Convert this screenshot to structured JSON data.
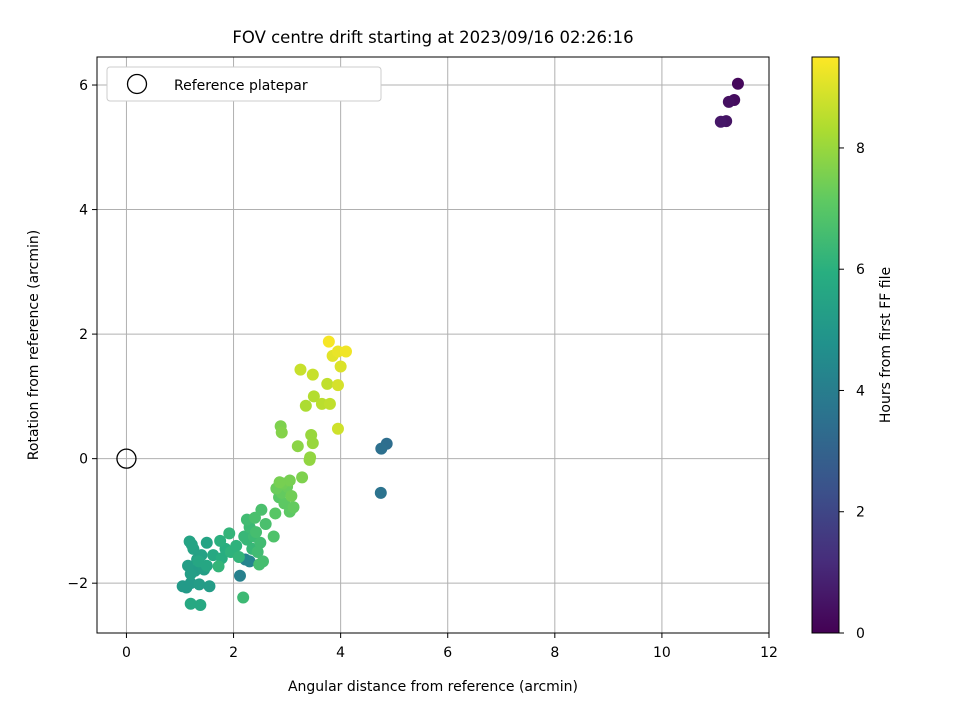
{
  "chart_data": {
    "type": "scatter",
    "title": "FOV centre drift starting at 2023/09/16 02:26:16",
    "xlabel": "Angular distance from reference (arcmin)",
    "ylabel": "Rotation from reference (arcmin)",
    "xlim": [
      -0.55,
      12
    ],
    "ylim": [
      -2.8,
      6.45
    ],
    "xticks": [
      0,
      2,
      4,
      6,
      8,
      10,
      12
    ],
    "yticks": [
      -2,
      0,
      2,
      4,
      6
    ],
    "grid": true,
    "legend": {
      "placement": "top-left",
      "entries": [
        "Reference platepar"
      ]
    },
    "reference_point": {
      "x": 0,
      "y": 0
    },
    "colorbar": {
      "label": "Hours from first FF file",
      "colormap": "viridis",
      "range": [
        0,
        9.5
      ],
      "ticks": [
        0,
        2,
        4,
        6,
        8
      ]
    },
    "series": [
      {
        "points": [
          {
            "x": 11.42,
            "y": 6.02,
            "c": 0.2
          },
          {
            "x": 11.35,
            "y": 5.76,
            "c": 0.3
          },
          {
            "x": 11.25,
            "y": 5.73,
            "c": 0.4
          },
          {
            "x": 11.2,
            "y": 5.42,
            "c": 0.5
          },
          {
            "x": 11.1,
            "y": 5.41,
            "c": 0.6
          },
          {
            "x": 4.86,
            "y": 0.24,
            "c": 3.4
          },
          {
            "x": 4.76,
            "y": 0.16,
            "c": 3.5
          },
          {
            "x": 4.75,
            "y": -0.55,
            "c": 3.6
          },
          {
            "x": 2.12,
            "y": -1.88,
            "c": 4.1
          },
          {
            "x": 2.22,
            "y": -1.62,
            "c": 4.2
          },
          {
            "x": 2.3,
            "y": -1.65,
            "c": 4.3
          },
          {
            "x": 1.12,
            "y": -2.07,
            "c": 5.1
          },
          {
            "x": 1.05,
            "y": -2.05,
            "c": 5.1
          },
          {
            "x": 1.2,
            "y": -2.0,
            "c": 5.1
          },
          {
            "x": 1.36,
            "y": -2.02,
            "c": 5.2
          },
          {
            "x": 1.55,
            "y": -2.05,
            "c": 5.2
          },
          {
            "x": 1.28,
            "y": -1.8,
            "c": 5.2
          },
          {
            "x": 1.45,
            "y": -1.78,
            "c": 5.3
          },
          {
            "x": 1.15,
            "y": -1.72,
            "c": 5.3
          },
          {
            "x": 1.2,
            "y": -1.85,
            "c": 5.3
          },
          {
            "x": 1.32,
            "y": -1.62,
            "c": 5.4
          },
          {
            "x": 1.4,
            "y": -1.55,
            "c": 5.4
          },
          {
            "x": 1.25,
            "y": -1.45,
            "c": 5.4
          },
          {
            "x": 1.18,
            "y": -1.33,
            "c": 5.5
          },
          {
            "x": 1.22,
            "y": -1.38,
            "c": 5.5
          },
          {
            "x": 1.5,
            "y": -1.35,
            "c": 5.5
          },
          {
            "x": 1.35,
            "y": -1.65,
            "c": 5.6
          },
          {
            "x": 1.5,
            "y": -1.72,
            "c": 5.6
          },
          {
            "x": 1.62,
            "y": -1.55,
            "c": 5.7
          },
          {
            "x": 1.2,
            "y": -2.33,
            "c": 5.7
          },
          {
            "x": 1.38,
            "y": -2.35,
            "c": 5.7
          },
          {
            "x": 1.78,
            "y": -1.6,
            "c": 5.9
          },
          {
            "x": 1.85,
            "y": -1.45,
            "c": 5.9
          },
          {
            "x": 1.75,
            "y": -1.32,
            "c": 6.0
          },
          {
            "x": 1.95,
            "y": -1.5,
            "c": 6.1
          },
          {
            "x": 2.05,
            "y": -1.4,
            "c": 6.1
          },
          {
            "x": 1.92,
            "y": -1.2,
            "c": 6.2
          },
          {
            "x": 1.72,
            "y": -1.73,
            "c": 6.2
          },
          {
            "x": 2.1,
            "y": -1.58,
            "c": 6.2
          },
          {
            "x": 2.25,
            "y": -1.3,
            "c": 6.3
          },
          {
            "x": 2.35,
            "y": -1.45,
            "c": 6.3
          },
          {
            "x": 2.2,
            "y": -1.25,
            "c": 6.3
          },
          {
            "x": 2.3,
            "y": -1.1,
            "c": 6.4
          },
          {
            "x": 2.18,
            "y": -2.23,
            "c": 6.4
          },
          {
            "x": 2.38,
            "y": -1.25,
            "c": 6.4
          },
          {
            "x": 2.45,
            "y": -1.5,
            "c": 6.5
          },
          {
            "x": 2.25,
            "y": -0.98,
            "c": 6.5
          },
          {
            "x": 2.5,
            "y": -1.35,
            "c": 6.5
          },
          {
            "x": 2.42,
            "y": -1.18,
            "c": 6.6
          },
          {
            "x": 2.55,
            "y": -1.65,
            "c": 6.6
          },
          {
            "x": 2.48,
            "y": -1.7,
            "c": 6.6
          },
          {
            "x": 2.4,
            "y": -0.95,
            "c": 6.7
          },
          {
            "x": 2.52,
            "y": -0.82,
            "c": 6.7
          },
          {
            "x": 2.6,
            "y": -1.05,
            "c": 6.7
          },
          {
            "x": 2.75,
            "y": -1.25,
            "c": 6.8
          },
          {
            "x": 2.78,
            "y": -0.88,
            "c": 7.0
          },
          {
            "x": 2.85,
            "y": -0.62,
            "c": 7.0
          },
          {
            "x": 2.95,
            "y": -0.72,
            "c": 7.1
          },
          {
            "x": 3.05,
            "y": -0.85,
            "c": 7.1
          },
          {
            "x": 3.12,
            "y": -0.78,
            "c": 7.2
          },
          {
            "x": 2.9,
            "y": -0.55,
            "c": 7.2
          },
          {
            "x": 3.0,
            "y": -0.45,
            "c": 7.3
          },
          {
            "x": 2.8,
            "y": -0.48,
            "c": 7.3
          },
          {
            "x": 3.08,
            "y": -0.6,
            "c": 7.4
          },
          {
            "x": 2.92,
            "y": -0.4,
            "c": 7.4
          },
          {
            "x": 3.05,
            "y": -0.35,
            "c": 7.5
          },
          {
            "x": 2.86,
            "y": -0.38,
            "c": 7.5
          },
          {
            "x": 3.28,
            "y": -0.3,
            "c": 7.6
          },
          {
            "x": 2.88,
            "y": 0.52,
            "c": 7.6
          },
          {
            "x": 2.9,
            "y": 0.42,
            "c": 7.7
          },
          {
            "x": 3.2,
            "y": 0.2,
            "c": 7.8
          },
          {
            "x": 3.43,
            "y": 0.02,
            "c": 7.9
          },
          {
            "x": 3.42,
            "y": -0.02,
            "c": 7.9
          },
          {
            "x": 3.45,
            "y": 0.38,
            "c": 8.0
          },
          {
            "x": 3.48,
            "y": 0.25,
            "c": 8.0
          },
          {
            "x": 3.35,
            "y": 0.85,
            "c": 8.3
          },
          {
            "x": 3.5,
            "y": 1.0,
            "c": 8.4
          },
          {
            "x": 3.65,
            "y": 0.88,
            "c": 8.5
          },
          {
            "x": 3.8,
            "y": 0.88,
            "c": 8.6
          },
          {
            "x": 3.75,
            "y": 1.2,
            "c": 8.6
          },
          {
            "x": 3.48,
            "y": 1.35,
            "c": 8.7
          },
          {
            "x": 3.25,
            "y": 1.43,
            "c": 8.7
          },
          {
            "x": 3.95,
            "y": 0.48,
            "c": 8.8
          },
          {
            "x": 3.95,
            "y": 1.18,
            "c": 8.9
          },
          {
            "x": 4.0,
            "y": 1.48,
            "c": 9.0
          },
          {
            "x": 3.85,
            "y": 1.65,
            "c": 9.1
          },
          {
            "x": 3.95,
            "y": 1.72,
            "c": 9.2
          },
          {
            "x": 4.1,
            "y": 1.72,
            "c": 9.3
          },
          {
            "x": 3.78,
            "y": 1.88,
            "c": 9.4
          }
        ]
      }
    ]
  }
}
